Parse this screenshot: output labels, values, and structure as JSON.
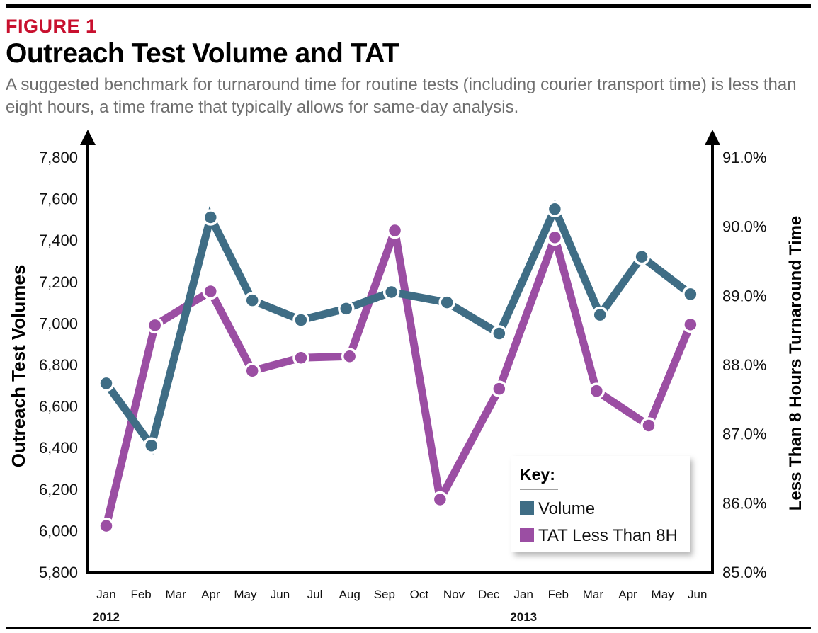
{
  "header": {
    "figure_label": "FIGURE 1",
    "title": "Outreach Test Volume and TAT",
    "subtitle": "A suggested benchmark for turnaround time for routine tests (including courier transport time) is less than eight hours, a time frame that typically allows for same-day analysis."
  },
  "colors": {
    "accent_red": "#c8102e",
    "volume": "#3f6d85",
    "tat": "#9b4ea3"
  },
  "chart_data": {
    "type": "line",
    "title": "Outreach Test Volume and TAT",
    "categories": [
      "Jan",
      "Feb",
      "Mar",
      "Apr",
      "May",
      "Jun",
      "Jul",
      "Aug",
      "Sep",
      "Oct",
      "Nov",
      "Dec",
      "Jan",
      "Feb",
      "Mar",
      "Apr",
      "May",
      "Jun"
    ],
    "years": [
      {
        "label": "2012",
        "category_index": 0
      },
      {
        "label": "2013",
        "category_index": 12
      }
    ],
    "y_left": {
      "label": "Outreach Test Volumes",
      "lim": [
        5800,
        7800
      ],
      "ticks": [
        5800,
        6000,
        6200,
        6400,
        6600,
        6800,
        7000,
        7200,
        7400,
        7600,
        7800
      ],
      "tick_labels": [
        "5,800",
        "6,000",
        "6,200",
        "6,400",
        "6,600",
        "6,800",
        "7,000",
        "7,200",
        "7,400",
        "7,600",
        "7,800"
      ]
    },
    "y_right": {
      "label": "Less Than 8 Hours Turnaround Time",
      "lim": [
        85.0,
        91.0
      ],
      "ticks": [
        85,
        86,
        87,
        88,
        89,
        90,
        91
      ],
      "tick_labels": [
        "85.0%",
        "86.0%",
        "87.0%",
        "88.0%",
        "89.0%",
        "90.0%",
        "91.0%"
      ]
    },
    "series": [
      {
        "name": "Volume",
        "axis": "left",
        "color": "#3f6d85",
        "x": [
          0,
          1.3,
          3,
          4.2,
          5.6,
          6.9,
          8.2,
          9.8,
          11.3,
          12.9,
          14.2,
          15.4,
          16.8
        ],
        "values": [
          6710,
          6410,
          7510,
          7110,
          7015,
          7070,
          7150,
          7100,
          6950,
          7550,
          7040,
          7320,
          7140
        ]
      },
      {
        "name": "TAT Less Than 8H",
        "axis": "right",
        "color": "#9b4ea3",
        "x": [
          0,
          1.4,
          3,
          4.2,
          5.6,
          7,
          8.3,
          9.6,
          11.3,
          12.9,
          14.1,
          15.6,
          16.8
        ],
        "values": [
          85.67,
          88.57,
          89.06,
          87.91,
          88.1,
          88.12,
          89.94,
          86.05,
          87.65,
          89.84,
          87.62,
          87.12,
          88.58
        ]
      }
    ],
    "legend": {
      "title": "Key:",
      "position": "bottom-right",
      "entries": [
        "Volume",
        "TAT Less Than 8H"
      ]
    },
    "grid": false
  }
}
